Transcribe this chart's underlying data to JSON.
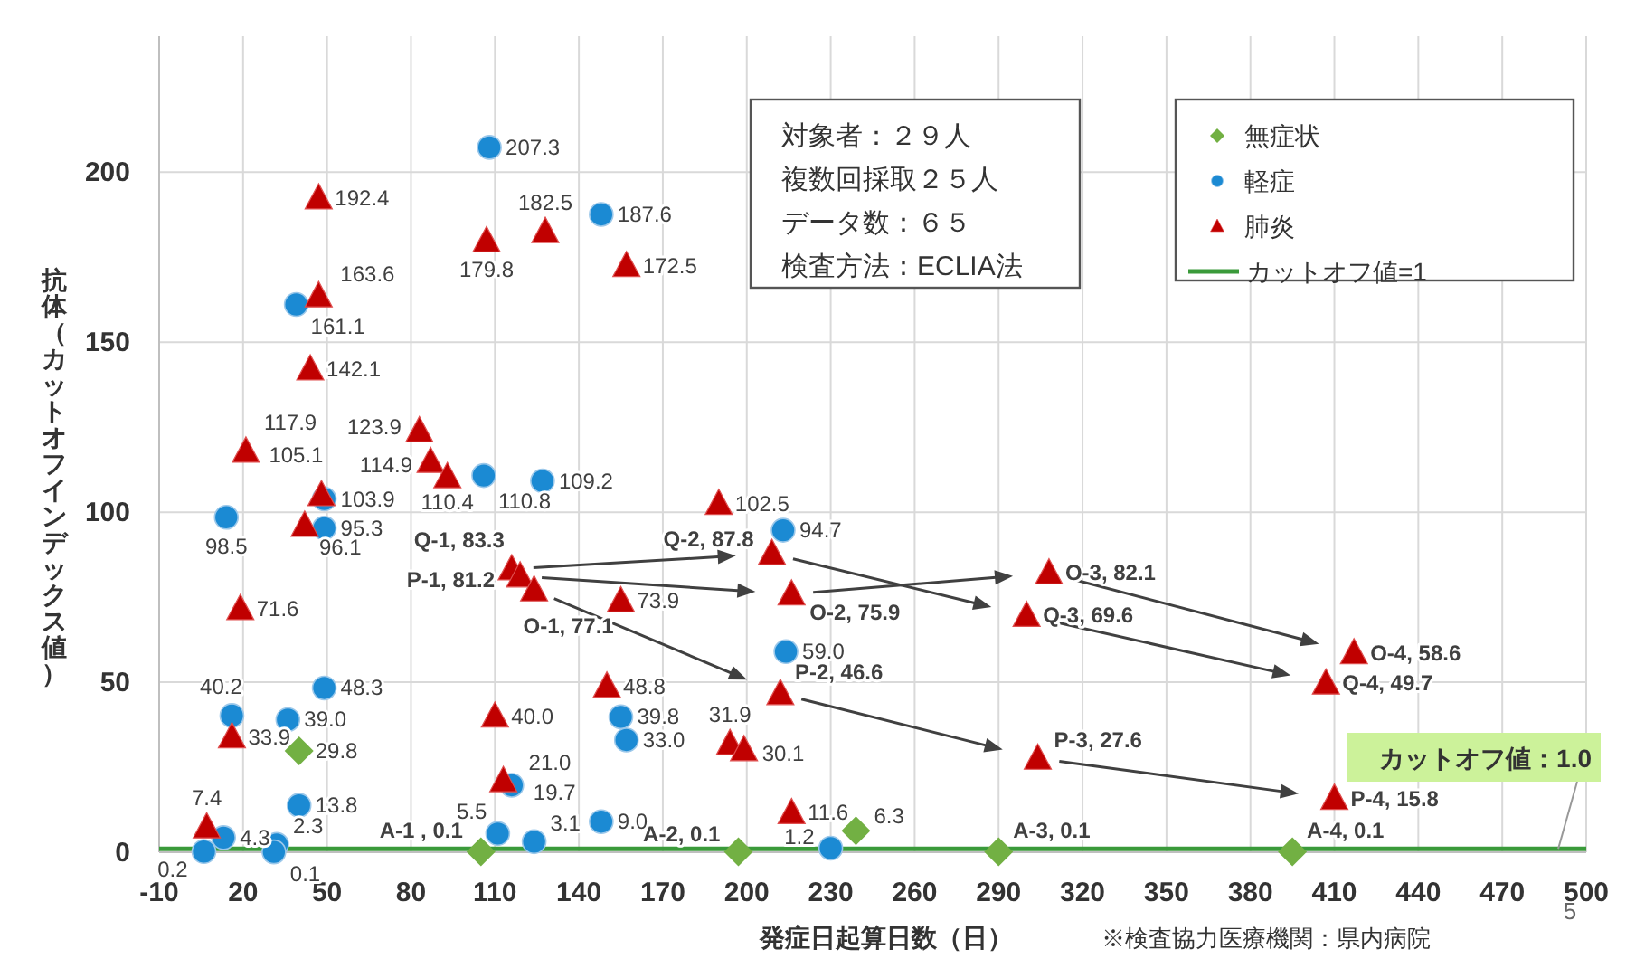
{
  "chart_data": {
    "type": "scatter",
    "xlabel": "発症日起算日数（日）",
    "ylabel": "抗体（カットオフインデックス値）",
    "xlim": [
      -10,
      500
    ],
    "xticks": [
      -10,
      20,
      50,
      80,
      110,
      140,
      170,
      200,
      230,
      260,
      290,
      320,
      350,
      380,
      410,
      440,
      470,
      500
    ],
    "ylim": [
      0,
      240
    ],
    "yticks": [
      0,
      50,
      100,
      150,
      200
    ],
    "grid": true,
    "legend": "top right",
    "series": [
      {
        "name": "無症状",
        "color": "#72b043",
        "marker": "diamond",
        "x": [
          40,
          105,
          197,
          239,
          290,
          395
        ],
        "values": [
          29.8,
          0.1,
          0.1,
          6.3,
          0.1,
          0.1
        ],
        "value_labels": [
          "29.8",
          "A-1 , 0.1",
          "A-2, 0.1",
          "6.3",
          "A-3, 0.1",
          "A-4, 0.1"
        ]
      },
      {
        "name": "軽症",
        "color": "#1b8ad3",
        "marker": "circle",
        "x": [
          108,
          39,
          49,
          14,
          49,
          16,
          36,
          49,
          40,
          13,
          6,
          32,
          31,
          116,
          111,
          124,
          148,
          155,
          157,
          213,
          214,
          230,
          148,
          106,
          127
        ],
        "values": [
          207.3,
          161.1,
          103.9,
          98.5,
          95.3,
          40.2,
          39.0,
          48.3,
          13.8,
          4.3,
          0.2,
          2.3,
          0.1,
          19.7,
          5.5,
          3.1,
          9.0,
          39.8,
          33.0,
          94.7,
          59.0,
          1.2,
          187.6,
          110.8,
          109.2
        ],
        "value_labels": [
          "207.3",
          "161.1",
          "103.9",
          "98.5",
          "95.3",
          "40.2",
          "39.0",
          "48.3",
          "13.8",
          "4.3",
          "0.2",
          "2.3",
          "0.1",
          "19.7",
          "5.5",
          "3.1",
          "9.0",
          "39.8",
          "33.0",
          "94.7",
          "59.0",
          "1.2",
          "187.6",
          "110.8",
          "109.2"
        ]
      },
      {
        "name": "肺炎",
        "color": "#c00000",
        "marker": "triangle",
        "x": [
          47,
          47,
          44,
          21,
          48,
          42,
          19,
          16,
          7,
          110,
          113,
          150,
          155,
          116,
          119,
          124,
          190,
          194,
          199,
          216,
          107,
          128,
          157,
          83,
          87,
          93,
          209,
          216,
          212,
          308,
          300,
          417,
          407,
          304,
          410
        ],
        "values": [
          192.4,
          163.6,
          142.1,
          117.9,
          105.1,
          96.1,
          71.6,
          33.9,
          7.4,
          40.0,
          21.0,
          48.8,
          73.9,
          83.3,
          81.2,
          77.1,
          102.5,
          31.9,
          30.1,
          11.6,
          179.8,
          182.5,
          172.5,
          123.9,
          114.9,
          110.4,
          87.8,
          75.9,
          46.6,
          82.1,
          69.6,
          58.6,
          49.7,
          27.6,
          15.8
        ],
        "value_labels": [
          "192.4",
          "163.6",
          "142.1",
          "117.9",
          "105.1",
          "96.1",
          "71.6",
          "33.9",
          "7.4",
          "40.0",
          "21.0",
          "48.8",
          "73.9",
          "Q-1, 83.3",
          "P-1, 81.2",
          "O-1, 77.1",
          "102.5",
          "31.9",
          "30.1",
          "11.6",
          "179.8",
          "182.5",
          "172.5",
          "123.9",
          "114.9",
          "110.4",
          "Q-2, 87.8",
          "O-2, 75.9",
          "P-2, 46.6",
          "O-3, 82.1",
          "Q-3, 69.6",
          "O-4, 58.6",
          "Q-4, 49.7",
          "P-3, 27.6",
          "P-4, 15.8"
        ]
      }
    ],
    "ref_lines": [
      {
        "axis": "y",
        "value": 1,
        "label": "カットオフ値=1",
        "color": "#3a9a3a"
      }
    ],
    "annotations": [
      "対象者：２９人",
      "複数回採取２５人",
      "データ数：６５",
      "検査方法：ECLIA法",
      "※検査協力医療機関：県内病院",
      "5",
      {
        "text": "カットオフ値：1.0",
        "x": 490,
        "y": 1
      }
    ]
  }
}
